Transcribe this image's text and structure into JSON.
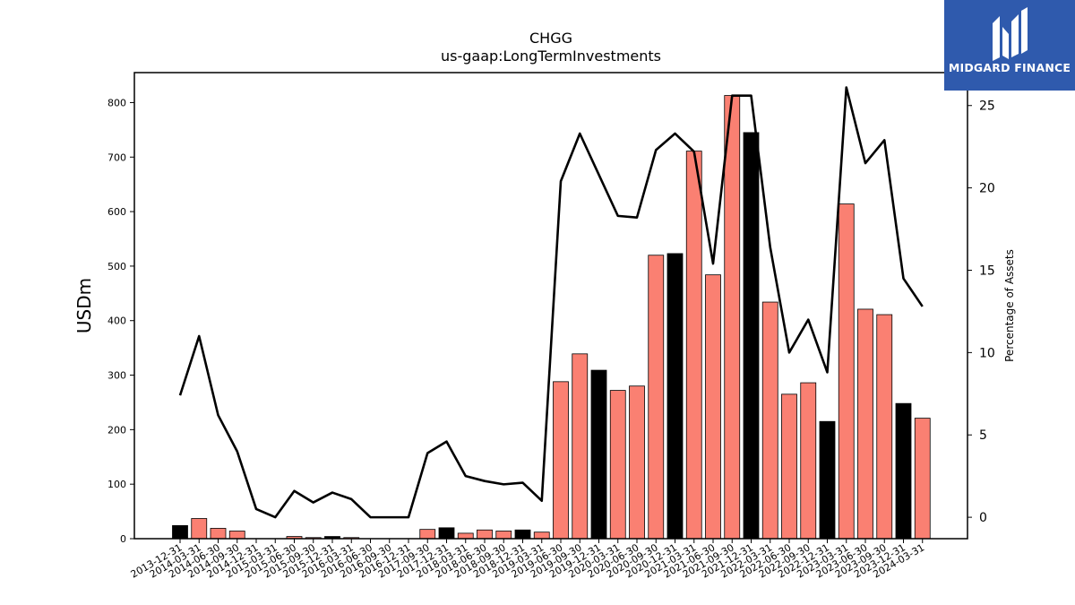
{
  "chart_data": {
    "type": "bar",
    "title": "CHGG",
    "subtitle": "us-gaap:LongTermInvestments",
    "ylabel": "USDm",
    "y2label": "Percentage of Assets",
    "ylim": [
      0,
      855
    ],
    "y2lim": [
      -1.3,
      27
    ],
    "yticks": [
      0,
      100,
      200,
      300,
      400,
      500,
      600,
      700,
      800
    ],
    "y2ticks": [
      0,
      5,
      10,
      15,
      20,
      25
    ],
    "categories": [
      "2013-12-31",
      "2014-03-31",
      "2014-06-30",
      "2014-09-30",
      "2014-12-31",
      "2015-03-31",
      "2015-06-30",
      "2015-09-30",
      "2015-12-31",
      "2016-03-31",
      "2016-06-30",
      "2016-09-30",
      "2016-12-31",
      "2017-09-30",
      "2017-12-31",
      "2018-03-31",
      "2018-06-30",
      "2018-09-30",
      "2018-12-31",
      "2019-03-31",
      "2019-06-30",
      "2019-09-30",
      "2019-12-31",
      "2020-03-31",
      "2020-06-30",
      "2020-09-30",
      "2020-12-31",
      "2021-03-31",
      "2021-06-30",
      "2021-09-30",
      "2021-12-31",
      "2022-03-31",
      "2022-06-30",
      "2022-09-30",
      "2022-12-31",
      "2023-03-31",
      "2023-06-30",
      "2023-09-30",
      "2023-12-31",
      "2024-03-31"
    ],
    "series": [
      {
        "kind": "bar",
        "values": [
          24,
          37,
          19,
          14,
          0,
          0,
          4,
          2,
          4,
          2,
          0,
          0,
          0,
          17,
          20,
          10,
          16,
          14,
          16,
          12,
          288,
          339,
          309,
          272,
          280,
          520,
          523,
          711,
          484,
          813,
          745,
          434,
          265,
          286,
          215,
          614,
          421,
          411,
          248,
          221
        ],
        "colors": [
          "#000000",
          "#fa8072",
          "#fa8072",
          "#fa8072",
          "#000000",
          "#fa8072",
          "#fa8072",
          "#fa8072",
          "#000000",
          "#fa8072",
          "#fa8072",
          "#fa8072",
          "#000000",
          "#fa8072",
          "#000000",
          "#fa8072",
          "#fa8072",
          "#fa8072",
          "#000000",
          "#fa8072",
          "#fa8072",
          "#fa8072",
          "#000000",
          "#fa8072",
          "#fa8072",
          "#fa8072",
          "#000000",
          "#fa8072",
          "#fa8072",
          "#fa8072",
          "#000000",
          "#fa8072",
          "#fa8072",
          "#fa8072",
          "#000000",
          "#fa8072",
          "#fa8072",
          "#fa8072",
          "#000000",
          "#fa8072"
        ]
      },
      {
        "kind": "line",
        "axis": "right",
        "color": "#000000",
        "values": [
          7.4,
          11.0,
          6.2,
          4.0,
          0.5,
          0.0,
          1.6,
          0.9,
          1.5,
          1.1,
          0.0,
          0.0,
          0.0,
          3.9,
          4.6,
          2.5,
          2.2,
          2.0,
          2.1,
          1.0,
          20.4,
          23.3,
          20.8,
          18.3,
          18.2,
          22.3,
          23.3,
          22.2,
          15.4,
          25.6,
          25.6,
          16.4,
          10.0,
          12.0,
          8.8,
          26.1,
          21.5,
          22.9,
          14.5,
          12.8
        ]
      }
    ],
    "grid": false,
    "legend": "none"
  },
  "logo": {
    "text": "MIDGARD FINANCE",
    "background": "#2f5aad"
  }
}
